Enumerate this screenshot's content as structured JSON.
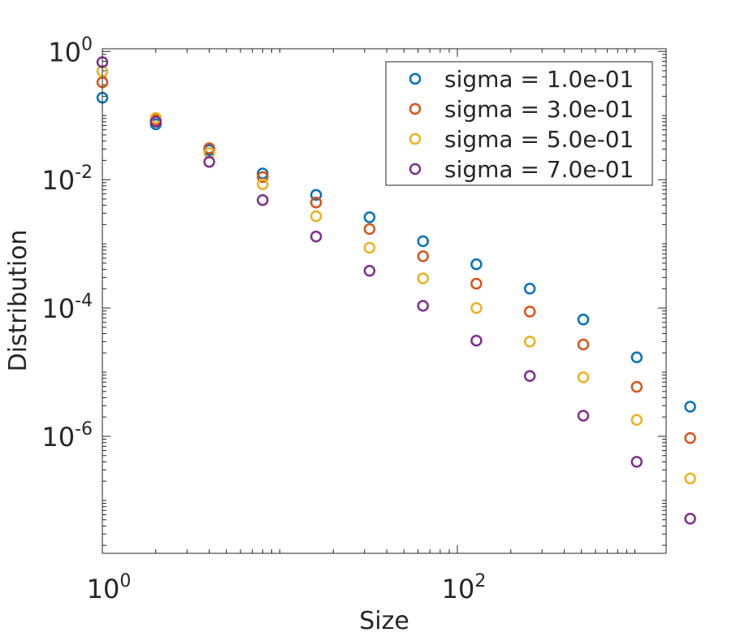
{
  "chart_data": {
    "type": "scatter",
    "x_scale": "log",
    "y_scale": "log",
    "xlabel": "Size",
    "ylabel": "Distribution",
    "xlim": [
      1,
      1500
    ],
    "ylim": [
      1.5e-08,
      1.1
    ],
    "x_ticks": [
      {
        "value": 1,
        "base": "10",
        "exp": "0"
      },
      {
        "value": 100,
        "base": "10",
        "exp": "2"
      }
    ],
    "y_ticks": [
      {
        "value": 1,
        "base": "10",
        "exp": "0"
      },
      {
        "value": 0.01,
        "base": "10",
        "exp": "-2"
      },
      {
        "value": 0.0001,
        "base": "10",
        "exp": "-4"
      },
      {
        "value": 1e-06,
        "base": "10",
        "exp": "-6"
      }
    ],
    "legend_position": "top-right",
    "x": [
      1,
      2,
      4,
      8,
      16,
      32,
      64,
      128,
      256,
      512,
      1024,
      2048
    ],
    "series": [
      {
        "name": "sigma = 1.0e-01",
        "color": "#0072BD",
        "values": [
          0.19,
          0.073,
          0.029,
          0.0125,
          0.0058,
          0.0026,
          0.0011,
          0.00048,
          0.0002,
          6.6e-05,
          1.7e-05,
          2.9e-06
        ]
      },
      {
        "name": "sigma = 3.0e-01",
        "color": "#D95319",
        "values": [
          0.33,
          0.085,
          0.031,
          0.011,
          0.0044,
          0.0017,
          0.00064,
          0.00024,
          8.8e-05,
          2.7e-05,
          5.9e-06,
          9.4e-07
        ]
      },
      {
        "name": "sigma = 5.0e-01",
        "color": "#EDB120",
        "values": [
          0.49,
          0.092,
          0.026,
          0.0085,
          0.0027,
          0.00087,
          0.00029,
          0.0001,
          3e-05,
          8.3e-06,
          1.8e-06,
          2.2e-07
        ]
      },
      {
        "name": "sigma = 7.0e-01",
        "color": "#7E2F8E",
        "values": [
          0.68,
          0.08,
          0.019,
          0.0048,
          0.0013,
          0.00038,
          0.000108,
          3.1e-05,
          8.7e-06,
          2.1e-06,
          4e-07,
          5.2e-08
        ]
      }
    ]
  }
}
